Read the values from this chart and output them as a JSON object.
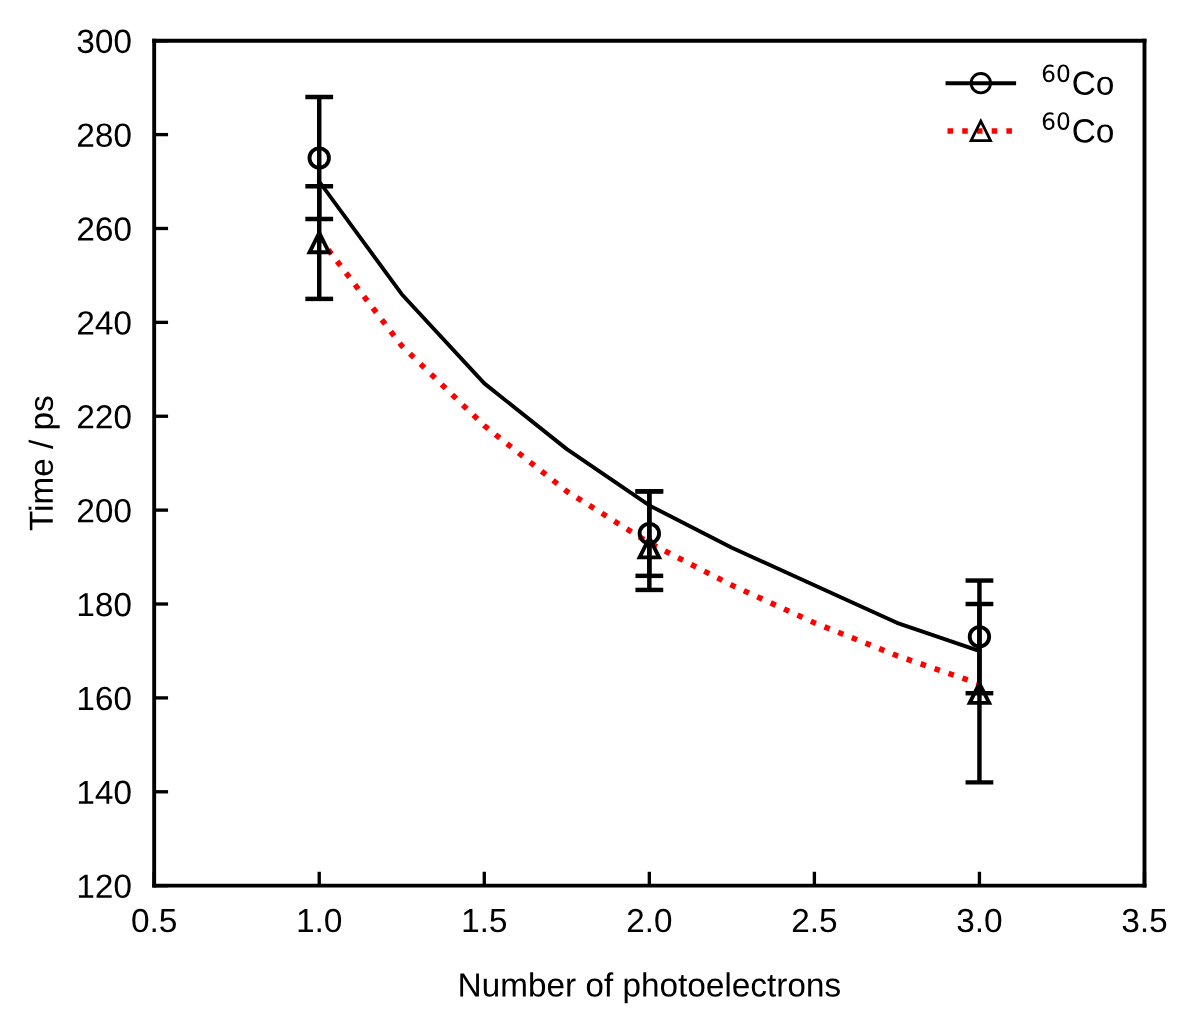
{
  "chart_data": {
    "type": "scatter",
    "xlabel": "Number of photoelectrons",
    "ylabel": "Time / ps",
    "xlim": [
      0.5,
      3.5
    ],
    "ylim": [
      120,
      300
    ],
    "xticks": [
      {
        "value": 0.5,
        "label": "0.5"
      },
      {
        "value": 1,
        "label": "1.0"
      },
      {
        "value": 1.5,
        "label": "1.5"
      },
      {
        "value": 2,
        "label": "2.0"
      },
      {
        "value": 2.5,
        "label": "2.5"
      },
      {
        "value": 3,
        "label": "3.0"
      },
      {
        "value": 3.5,
        "label": "3.5"
      }
    ],
    "yticks": [
      120,
      140,
      160,
      180,
      200,
      220,
      240,
      260,
      280,
      300
    ],
    "grid": false,
    "legend": "top right",
    "series": [
      {
        "color": "#000000",
        "marker": "circle",
        "x": [
          1,
          2,
          3
        ],
        "values": [
          275,
          195,
          173
        ],
        "errors": [
          13,
          [
            186,
            204
          ],
          12
        ]
      },
      {
        "type": "line",
        "name": "$^{60}$Co",
        "color": "#000000",
        "line_style": "solid",
        "marker": "none",
        "x": [
          1,
          1.25,
          1.5,
          1.75,
          2,
          2.25,
          2.5,
          2.75,
          3
        ],
        "values": [
          270,
          246,
          227,
          213,
          201,
          192,
          184,
          176,
          170
        ]
      },
      {
        "color": "#000000",
        "marker": "triangle",
        "x": [
          1,
          2,
          3
        ],
        "values": [
          257,
          192,
          161
        ],
        "errors": [
          12,
          [
            183,
            204
          ],
          [
            142,
            180
          ]
        ]
      },
      {
        "type": "line",
        "name": "$^{60}$Co",
        "color": "#ff0000",
        "line_style": "dotted",
        "marker": "none",
        "x": [
          1,
          1.25,
          1.5,
          1.75,
          2,
          2.25,
          2.5,
          2.75,
          3
        ],
        "values": [
          258,
          235,
          218,
          204,
          193,
          184,
          176,
          169,
          163
        ]
      }
    ]
  }
}
